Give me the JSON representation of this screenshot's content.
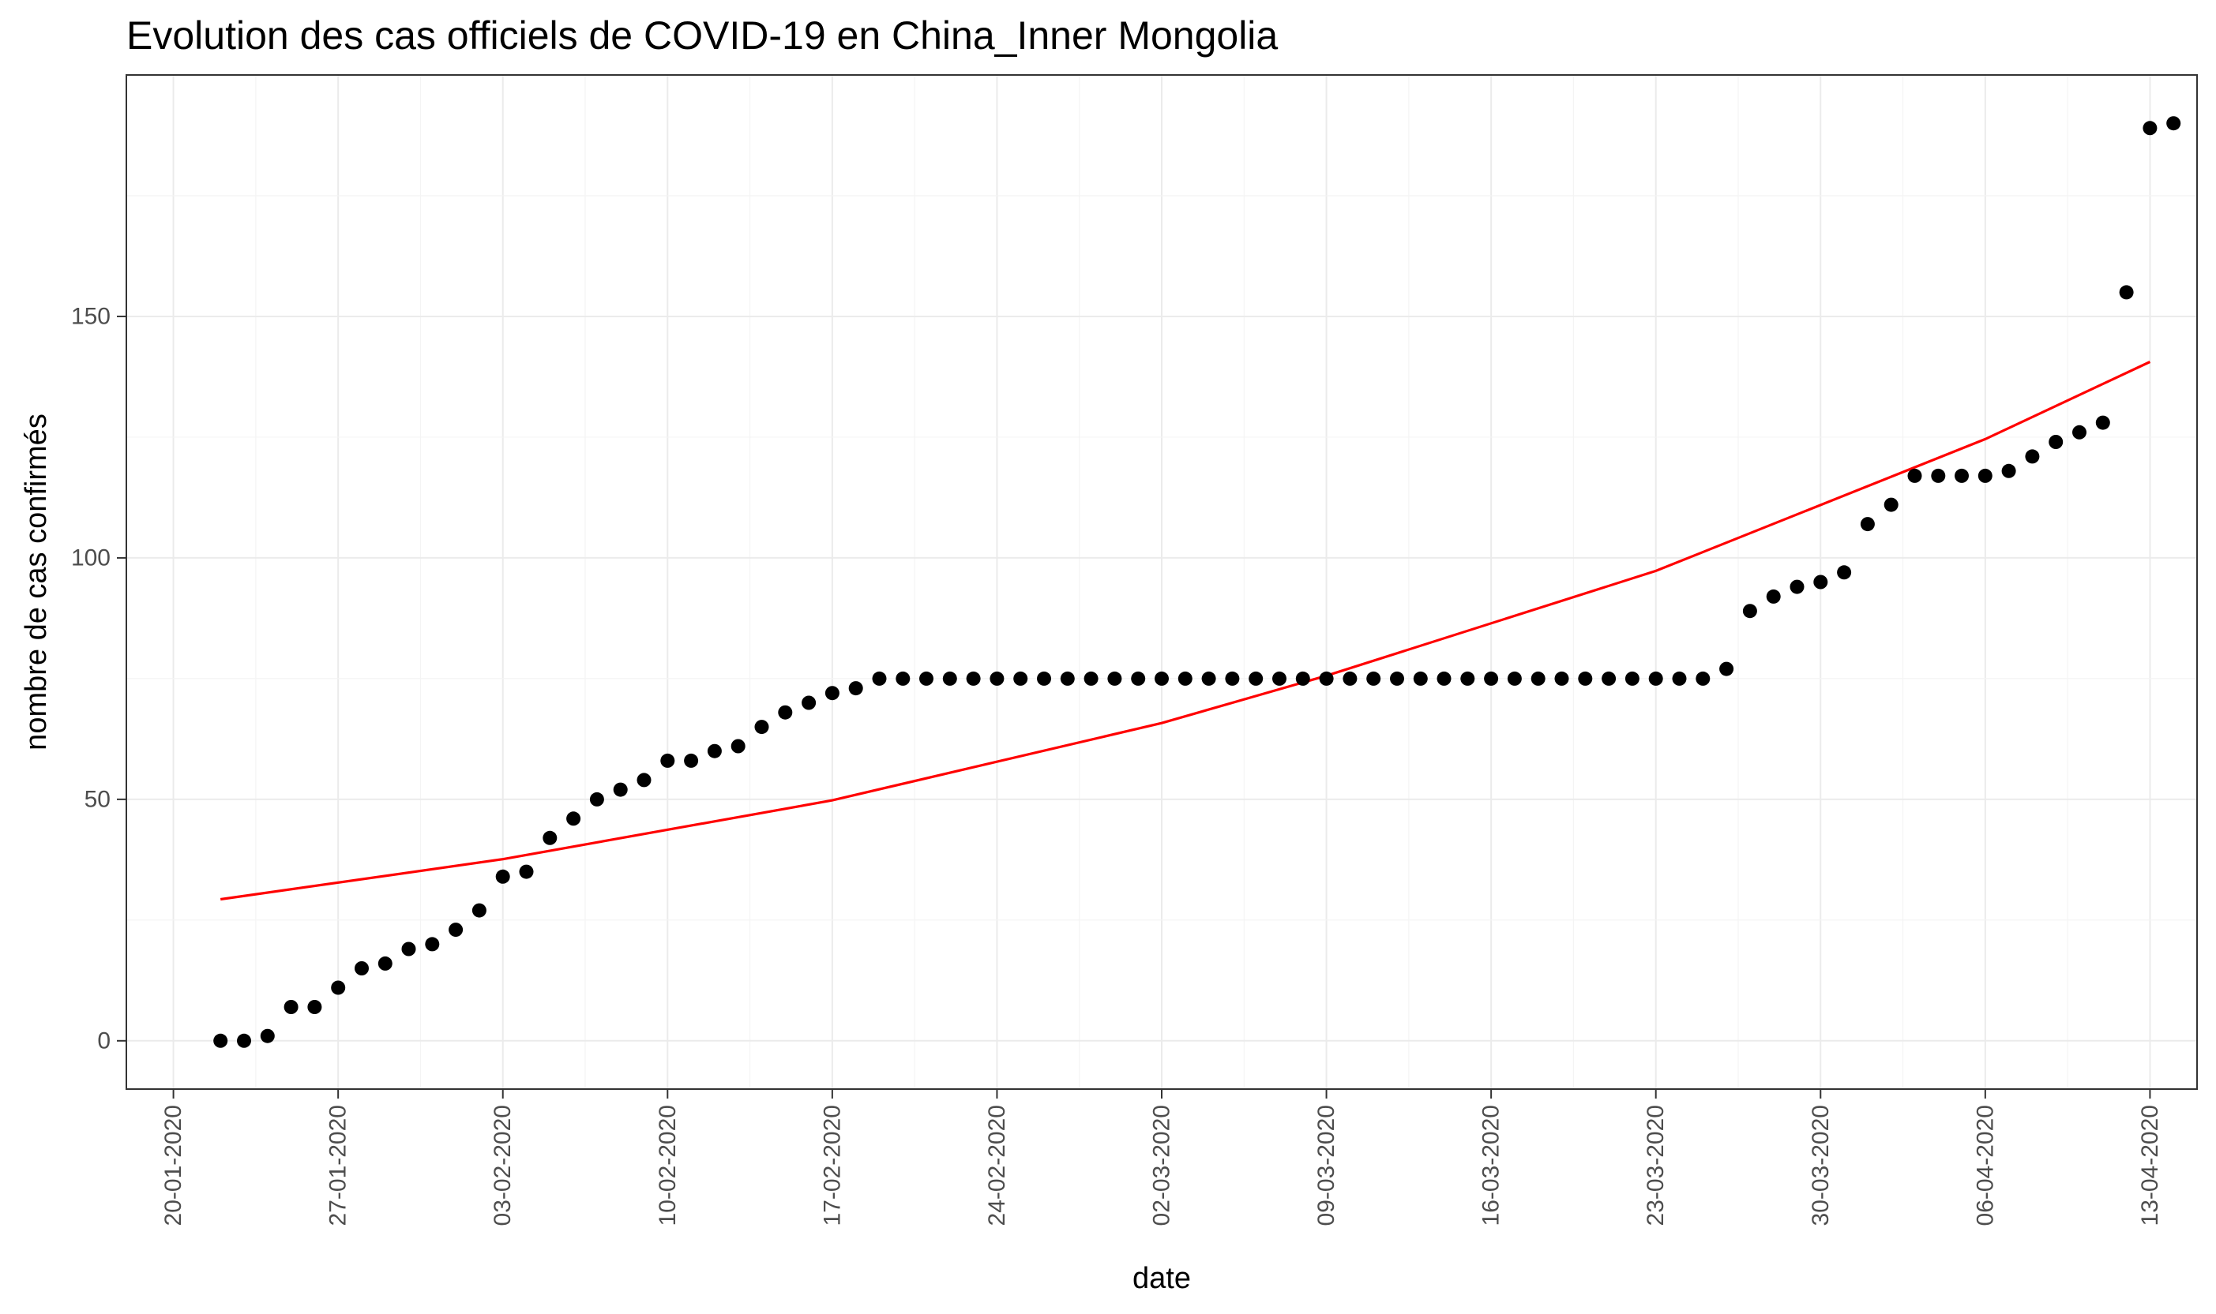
{
  "chart_data": {
    "type": "scatter",
    "title": "Evolution des cas officiels de COVID-19 en China_Inner Mongolia",
    "xlabel": "date",
    "ylabel": "nombre de cas confirmés",
    "x_type": "date",
    "xlim": [
      "2020-01-18",
      "2020-04-15"
    ],
    "ylim": [
      -10,
      200
    ],
    "grid": true,
    "legend": "none",
    "x_ticks": [
      {
        "date": "2020-01-20",
        "label": "20-01-2020"
      },
      {
        "date": "2020-01-27",
        "label": "27-01-2020"
      },
      {
        "date": "2020-02-03",
        "label": "03-02-2020"
      },
      {
        "date": "2020-02-10",
        "label": "10-02-2020"
      },
      {
        "date": "2020-02-17",
        "label": "17-02-2020"
      },
      {
        "date": "2020-02-24",
        "label": "24-02-2020"
      },
      {
        "date": "2020-03-02",
        "label": "02-03-2020"
      },
      {
        "date": "2020-03-09",
        "label": "09-03-2020"
      },
      {
        "date": "2020-03-16",
        "label": "16-03-2020"
      },
      {
        "date": "2020-03-23",
        "label": "23-03-2020"
      },
      {
        "date": "2020-03-30",
        "label": "30-03-2020"
      },
      {
        "date": "2020-04-06",
        "label": "06-04-2020"
      },
      {
        "date": "2020-04-13",
        "label": "13-04-2020"
      }
    ],
    "y_ticks": [
      0,
      50,
      100,
      150
    ],
    "series": [
      {
        "kind": "points",
        "color": "#000000",
        "start_date": "2020-01-22",
        "values": [
          0,
          0,
          1,
          7,
          7,
          11,
          15,
          16,
          19,
          20,
          23,
          27,
          34,
          35,
          42,
          46,
          50,
          52,
          54,
          58,
          58,
          60,
          61,
          65,
          68,
          70,
          72,
          73,
          75,
          75,
          75,
          75,
          75,
          75,
          75,
          75,
          75,
          75,
          75,
          75,
          75,
          75,
          75,
          75,
          75,
          75,
          75,
          75,
          75,
          75,
          75,
          75,
          75,
          75,
          75,
          75,
          75,
          75,
          75,
          75,
          75,
          75,
          75,
          75,
          77,
          89,
          92,
          94,
          95,
          97,
          107,
          111,
          117,
          117,
          117,
          117,
          118,
          121,
          124,
          126,
          128,
          155,
          189,
          190
        ]
      },
      {
        "kind": "fit-line",
        "color": "#ff0000",
        "x": [
          "2020-01-22",
          "2020-02-03",
          "2020-02-17",
          "2020-03-02",
          "2020-03-09",
          "2020-03-23",
          "2020-04-06",
          "2020-04-13"
        ],
        "values": [
          29.3,
          37.6,
          49.8,
          65.8,
          75.6,
          97.3,
          124.6,
          140.6
        ]
      }
    ]
  }
}
